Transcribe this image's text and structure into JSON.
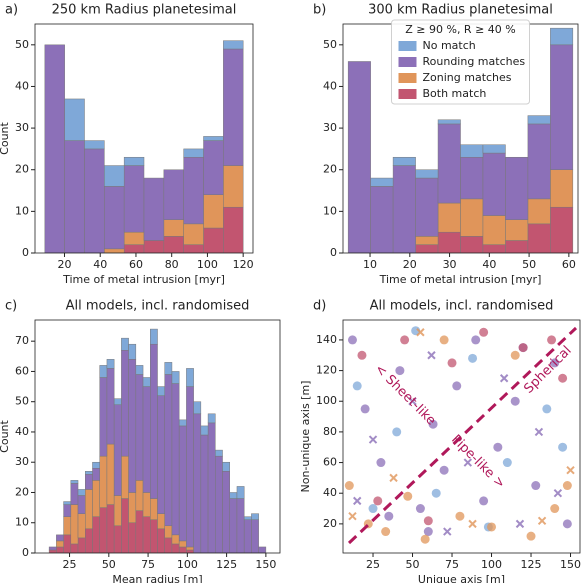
{
  "chart_data": [
    {
      "type": "histogram",
      "label": "a)",
      "title": "250 km Radius planetesimal",
      "xlabel": "Time of metal intrusion [myr]",
      "ylabel": "Count",
      "bins": [
        9.0,
        20.1,
        31.2,
        42.3,
        53.4,
        64.5,
        75.6,
        86.7,
        97.8,
        108.9,
        120.0
      ],
      "series": [
        {
          "name": "Both match",
          "color": "#c25570",
          "values": [
            0,
            0,
            0,
            0,
            2,
            3,
            4,
            2,
            6,
            11
          ]
        },
        {
          "name": "Zoning matches",
          "color": "#e0955a",
          "values": [
            0,
            0,
            0,
            1,
            3,
            0,
            4,
            5,
            8,
            10
          ]
        },
        {
          "name": "Rounding matches",
          "color": "#8c70b8",
          "values": [
            50,
            27,
            25,
            15,
            16,
            15,
            12,
            16,
            13,
            28
          ]
        },
        {
          "name": "No match",
          "color": "#7fa8d8",
          "values": [
            0,
            10,
            2,
            5,
            2,
            0,
            0,
            2,
            1,
            2
          ]
        }
      ],
      "xlim": [
        3.5,
        125.5
      ],
      "xticks": [
        20,
        40,
        60,
        80,
        100,
        120
      ],
      "ylim": [
        0,
        55
      ],
      "yticks": [
        0,
        10,
        20,
        30,
        40,
        50
      ]
    },
    {
      "type": "histogram",
      "label": "b)",
      "title": "300 km Radius planetesimal",
      "xlabel": "Time of metal intrusion [myr]",
      "legend_title": "Z ≥ 90 %, R ≥ 40 %",
      "legend": "upper center",
      "bins": [
        4.5,
        10.15,
        15.8,
        21.45,
        27.1,
        32.75,
        38.4,
        44.05,
        49.7,
        55.35,
        61.0
      ],
      "series": [
        {
          "name": "Both match",
          "color": "#c25570",
          "values": [
            0,
            0,
            0,
            2,
            5,
            4,
            2,
            3,
            7,
            11
          ]
        },
        {
          "name": "Zoning matches",
          "color": "#e0955a",
          "values": [
            0,
            0,
            0,
            2,
            7,
            9,
            7,
            5,
            6,
            9
          ]
        },
        {
          "name": "Rounding matches",
          "color": "#8c70b8",
          "values": [
            46,
            16,
            21,
            14,
            19,
            10,
            15,
            15,
            18,
            30
          ]
        },
        {
          "name": "No match",
          "color": "#7fa8d8",
          "values": [
            0,
            2,
            2,
            2,
            1,
            3,
            2,
            0,
            2,
            4
          ]
        }
      ],
      "xlim": [
        3.2,
        62.3
      ],
      "xticks": [
        10,
        20,
        30,
        40,
        50,
        60
      ],
      "ylim": [
        0,
        55
      ],
      "yticks": [
        0,
        10,
        20,
        30,
        40,
        50
      ]
    },
    {
      "type": "histogram",
      "label": "c)",
      "title": "All models, incl. randomised",
      "xlabel": "Mean radius [m]",
      "ylabel": "Count",
      "bins": [
        12,
        16.6,
        21.2,
        25.8,
        30.4,
        35,
        39.6,
        44.2,
        48.8,
        53.4,
        58,
        62.6,
        67.2,
        71.8,
        76.4,
        81,
        85.6,
        90.2,
        94.8,
        99.4,
        104,
        108.6,
        113.2,
        117.8,
        122.4,
        127,
        131.6,
        136.2,
        140.8,
        145.4,
        150
      ],
      "series": [
        {
          "color": "#c25570",
          "values": [
            1,
            2,
            6,
            3,
            5,
            8,
            12,
            15,
            16,
            9,
            18,
            10,
            14,
            12,
            11,
            8,
            5,
            3,
            2,
            1,
            0,
            0,
            0,
            0,
            0,
            0,
            0,
            0,
            0,
            0
          ]
        },
        {
          "color": "#e0955a",
          "values": [
            0,
            2,
            6,
            13,
            8,
            13,
            12,
            17,
            20,
            10,
            14,
            10,
            10,
            8,
            7,
            5,
            4,
            3,
            2,
            1,
            0,
            0,
            0,
            0,
            0,
            0,
            0,
            0,
            0,
            0
          ]
        },
        {
          "color": "#8c70b8",
          "values": [
            1,
            2,
            4,
            7,
            6,
            5,
            4,
            26,
            25,
            30,
            35,
            44,
            35,
            35,
            51,
            39,
            50,
            50,
            38,
            53,
            46,
            39,
            43,
            32,
            27,
            18,
            18,
            11,
            11,
            2
          ]
        },
        {
          "color": "#7fa8d8",
          "values": [
            0,
            0,
            1,
            1,
            2,
            1,
            2,
            4,
            3,
            2,
            4,
            5,
            3,
            3,
            5,
            3,
            4,
            4,
            2,
            6,
            4,
            3,
            3,
            2,
            3,
            2,
            4,
            1,
            2,
            0
          ]
        }
      ],
      "xlim": [
        3,
        159
      ],
      "xticks": [
        25,
        50,
        75,
        100,
        125,
        150
      ],
      "ylim": [
        0,
        77
      ],
      "yticks": [
        0,
        10,
        20,
        30,
        40,
        50,
        60,
        70
      ]
    },
    {
      "type": "scatter",
      "label": "d)",
      "title": "All models, incl. randomised",
      "xlabel": "Unique axis [m]",
      "ylabel": "Non-unique axis [m]",
      "annotations": [
        "< Sheet-like",
        "Spherical",
        "Pipe-like >"
      ],
      "series": [
        {
          "color": "#8c70b8",
          "marker": "o",
          "x": [
            12,
            20,
            30,
            42,
            55,
            63,
            78,
            90,
            104,
            115,
            128,
            140,
            148,
            35,
            70,
            95,
            120,
            60
          ],
          "y": [
            140,
            95,
            60,
            120,
            30,
            85,
            110,
            140,
            70,
            100,
            45,
            125,
            20,
            25,
            55,
            35,
            135,
            15
          ]
        },
        {
          "color": "#7fa8d8",
          "marker": "o",
          "x": [
            15,
            40,
            65,
            88,
            110,
            135,
            52,
            145,
            25,
            98
          ],
          "y": [
            110,
            80,
            40,
            128,
            60,
            95,
            146,
            70,
            30,
            18
          ]
        },
        {
          "color": "#e0955a",
          "marker": "o",
          "x": [
            10,
            22,
            33,
            47,
            58,
            80,
            100,
            125,
            140,
            148,
            70,
            115
          ],
          "y": [
            45,
            20,
            15,
            38,
            10,
            25,
            18,
            12,
            30,
            45,
            140,
            130
          ]
        },
        {
          "color": "#c25570",
          "marker": "o",
          "x": [
            18,
            45,
            75,
            95,
            120,
            138,
            145,
            28,
            60
          ],
          "y": [
            130,
            140,
            125,
            145,
            135,
            140,
            115,
            35,
            22
          ]
        },
        {
          "color": "#8c70b8",
          "marker": "x",
          "x": [
            25,
            50,
            72,
            85,
            108,
            130,
            142,
            15,
            62,
            118
          ],
          "y": [
            75,
            100,
            15,
            60,
            115,
            80,
            40,
            35,
            130,
            20
          ]
        },
        {
          "color": "#e0955a",
          "marker": "x",
          "x": [
            12,
            38,
            88,
            132,
            150,
            55
          ],
          "y": [
            25,
            50,
            20,
            22,
            55,
            145
          ]
        }
      ],
      "xlim": [
        6,
        156
      ],
      "xticks": [
        25,
        50,
        75,
        100,
        125,
        150
      ],
      "ylim": [
        1,
        153
      ],
      "yticks": [
        20,
        40,
        60,
        80,
        100,
        120,
        140
      ]
    }
  ]
}
